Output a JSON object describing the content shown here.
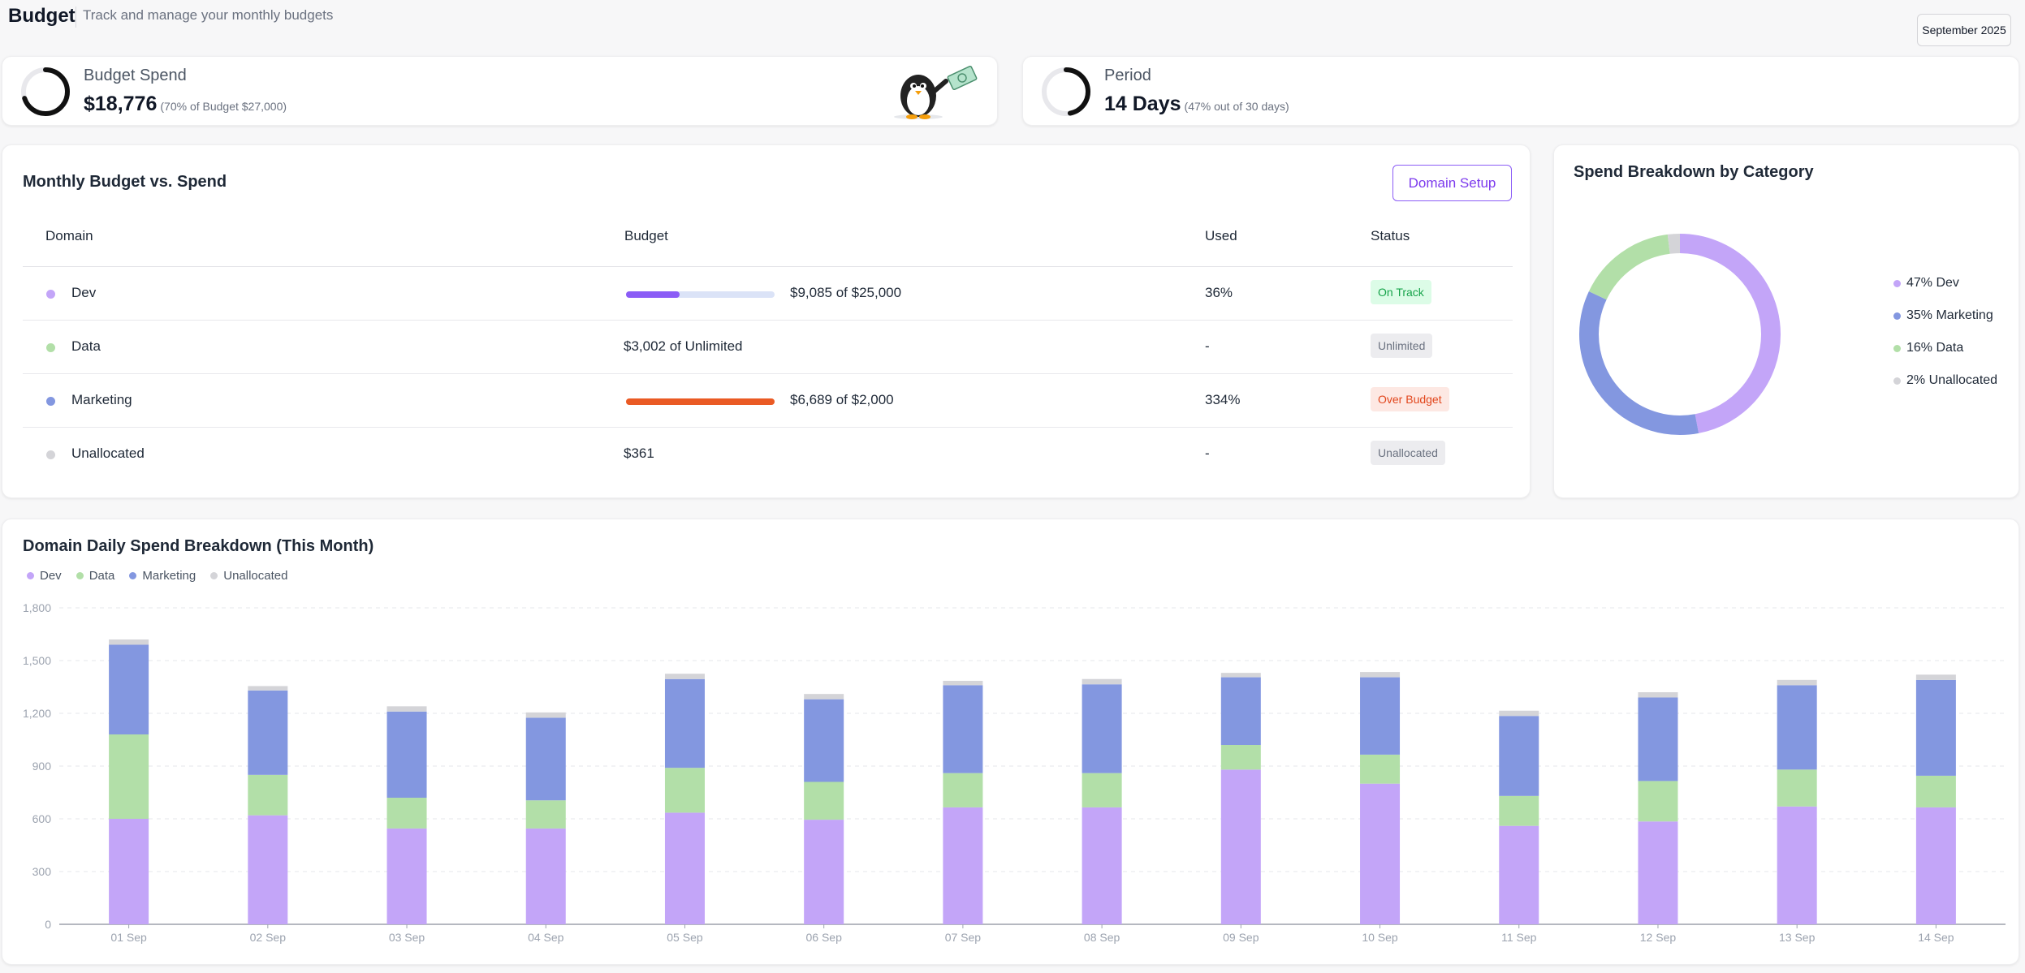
{
  "header": {
    "title": "Budget",
    "subtitle": "Track and manage your monthly budgets",
    "month_label": "September 2025"
  },
  "stats": {
    "budget_spend": {
      "label": "Budget Spend",
      "value": "$18,776",
      "note": "(70% of Budget $27,000)",
      "progress": 0.7
    },
    "period": {
      "label": "Period",
      "value": "14 Days",
      "note": "(47% out of 30 days)",
      "progress": 0.47
    }
  },
  "budget_table": {
    "title": "Monthly Budget vs. Spend",
    "setup_button": "Domain Setup",
    "columns": [
      "Domain",
      "Budget",
      "Used",
      "Status"
    ],
    "rows": [
      {
        "domain": "Dev",
        "color": "#c3a5f8",
        "budget": "$9,085 of $25,000",
        "progress": 0.36,
        "bar_color": "#8b5cf6",
        "track_color": "#dbe3f7",
        "used": "36%",
        "status": "On Track",
        "status_bg": "#dcfce7",
        "status_fg": "#16a34a"
      },
      {
        "domain": "Data",
        "color": "#b2dfa8",
        "budget": "$3,002 of Unlimited",
        "progress": null,
        "used": "-",
        "status": "Unlimited",
        "status_bg": "#ececef",
        "status_fg": "#6b7280"
      },
      {
        "domain": "Marketing",
        "color": "#8397e0",
        "budget": "$6,689 of $2,000",
        "progress": 1.0,
        "bar_color": "#ea5a24",
        "track_color": "#fde3d8",
        "used": "334%",
        "status": "Over Budget",
        "status_bg": "#fde8e3",
        "status_fg": "#e2461c"
      },
      {
        "domain": "Unallocated",
        "color": "#d4d4d8",
        "budget": "$361",
        "progress": null,
        "used": "-",
        "status": "Unallocated",
        "status_bg": "#ececef",
        "status_fg": "#6b7280"
      }
    ]
  },
  "breakdown": {
    "title": "Spend Breakdown by Category",
    "slices": [
      {
        "label": "47% Dev",
        "percent": 47,
        "color": "#c3a5f8"
      },
      {
        "label": "35% Marketing",
        "percent": 35,
        "color": "#8397e0"
      },
      {
        "label": "16% Data",
        "percent": 16,
        "color": "#b2dfa8"
      },
      {
        "label": "2% Unallocated",
        "percent": 2,
        "color": "#d4d4d8"
      }
    ]
  },
  "chart_data": {
    "type": "bar",
    "stacked": true,
    "title": "Domain Daily Spend Breakdown (This Month)",
    "categories": [
      "01 Sep",
      "02 Sep",
      "03 Sep",
      "04 Sep",
      "05 Sep",
      "06 Sep",
      "07 Sep",
      "08 Sep",
      "09 Sep",
      "10 Sep",
      "11 Sep",
      "12 Sep",
      "13 Sep",
      "14 Sep"
    ],
    "series": [
      {
        "name": "Dev",
        "color": "#c3a5f8",
        "values": [
          600,
          620,
          545,
          545,
          635,
          595,
          665,
          665,
          880,
          800,
          560,
          585,
          670,
          665
        ]
      },
      {
        "name": "Data",
        "color": "#b2dfa8",
        "values": [
          480,
          230,
          175,
          160,
          255,
          215,
          195,
          195,
          140,
          165,
          170,
          230,
          210,
          180
        ]
      },
      {
        "name": "Marketing",
        "color": "#8397e0",
        "values": [
          510,
          480,
          490,
          470,
          505,
          470,
          500,
          505,
          385,
          440,
          455,
          475,
          480,
          545
        ]
      },
      {
        "name": "Unallocated",
        "color": "#d4d4d8",
        "values": [
          30,
          25,
          30,
          30,
          30,
          30,
          25,
          30,
          25,
          30,
          30,
          30,
          30,
          30
        ]
      }
    ],
    "yticks": [
      "0",
      "300",
      "600",
      "900",
      "1,200",
      "1,500",
      "1,800"
    ],
    "ylim": [
      0,
      1800
    ],
    "grid": true,
    "legend": "top-left"
  }
}
